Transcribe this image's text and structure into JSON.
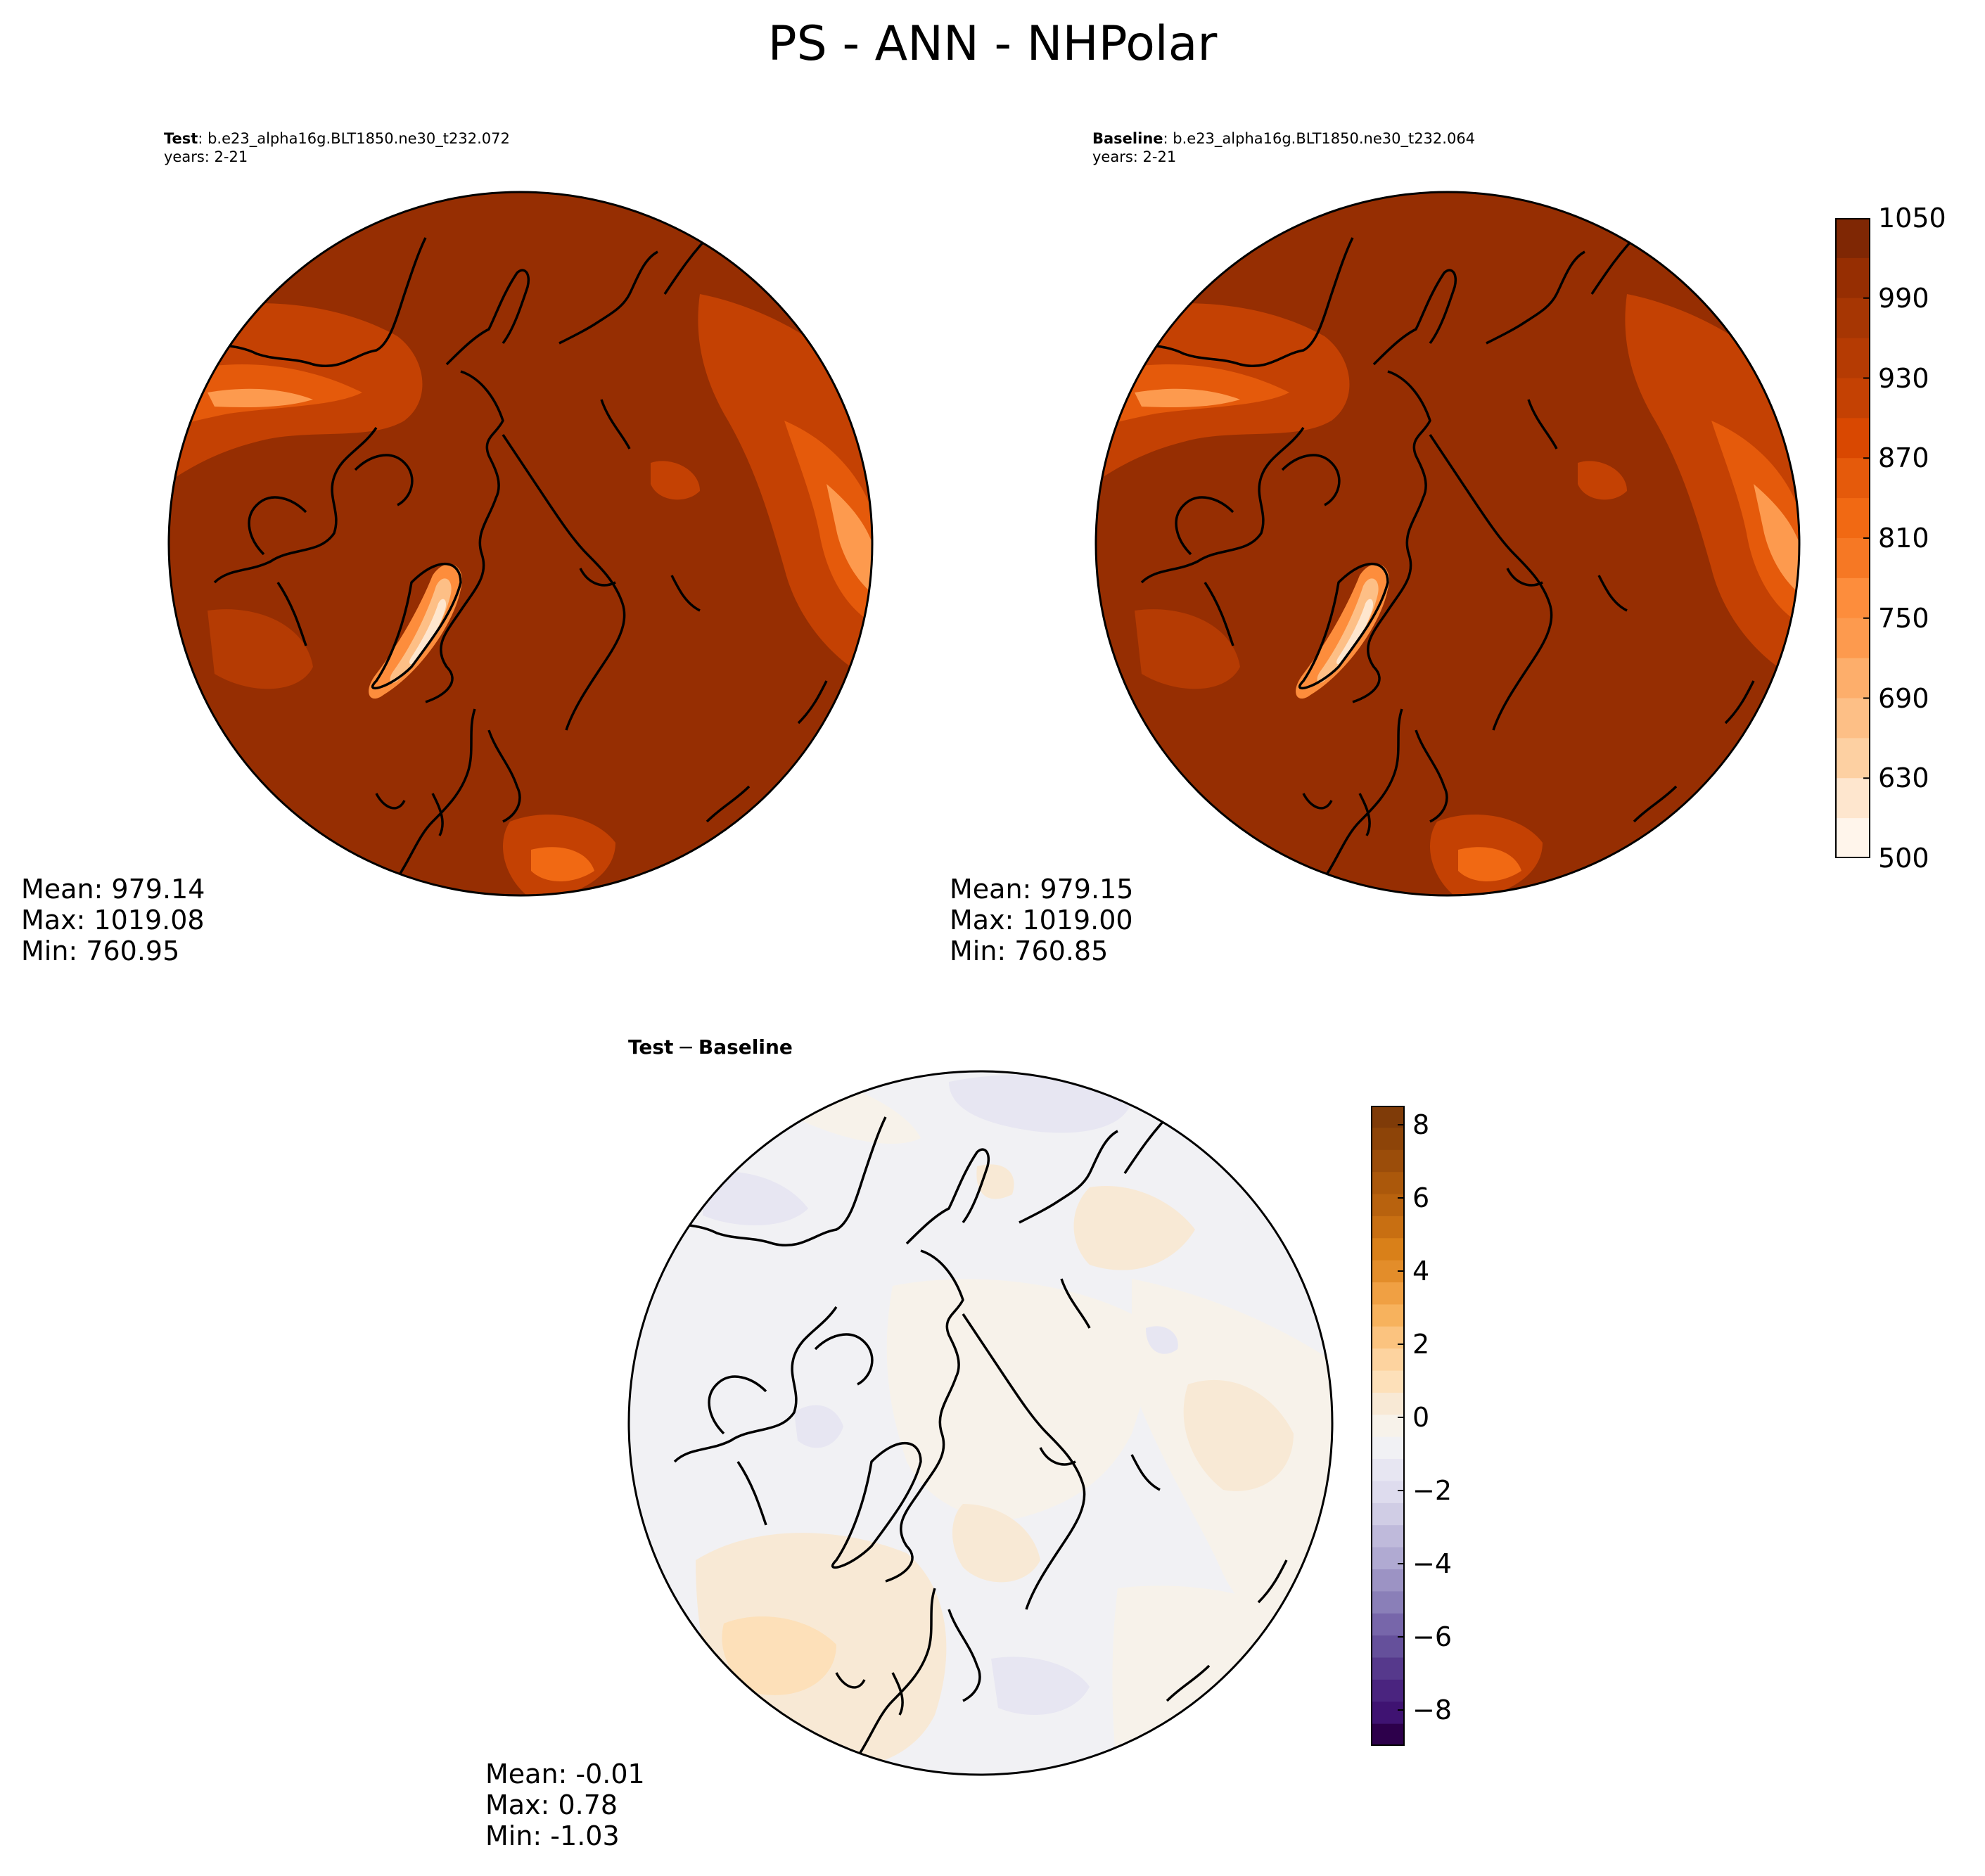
{
  "figure_title": "PS - ANN - NHPolar",
  "panels": {
    "test": {
      "label": "Test",
      "case": ": b.e23_alpha16g.BLT1850.ne30_t232.072",
      "years": "years: 2-21",
      "stats": {
        "mean": "Mean: 979.14",
        "max": "Max: 1019.08",
        "min": "Min: 760.95"
      }
    },
    "baseline": {
      "label": "Baseline",
      "case": ": b.e23_alpha16g.BLT1850.ne30_t232.064",
      "years": "years: 2-21",
      "stats": {
        "mean": "Mean: 979.15",
        "max": "Max: 1019.00",
        "min": "Min: 760.85"
      }
    },
    "diff": {
      "label_a": "Test",
      "label_sep": "−",
      "label_b": "Baseline",
      "stats": {
        "mean": "Mean: -0.01",
        "max": "Max:  0.78",
        "min": "Min: -1.03"
      }
    }
  },
  "colorbar_main": {
    "ticks": [
      "500",
      "630",
      "690",
      "750",
      "810",
      "870",
      "930",
      "990",
      "1050"
    ],
    "colormap": "Oranges",
    "colors": [
      "#fff5eb",
      "#fee6ce",
      "#fdd0a2",
      "#fdbf86",
      "#fdae6b",
      "#fd9a4e",
      "#fd8d3c",
      "#f67824",
      "#f16913",
      "#e55a0b",
      "#d94801",
      "#c44103",
      "#b53b03",
      "#a63603",
      "#962e02",
      "#7f2704"
    ]
  },
  "colorbar_diff": {
    "ticks": [
      "8",
      "6",
      "4",
      "2",
      "0",
      "−2",
      "−4",
      "−6",
      "−8"
    ],
    "colormap": "PuOr_r",
    "colors_top_to_bottom": [
      "#7f3b08",
      "#8d4408",
      "#9b4d0a",
      "#ab580b",
      "#b8620e",
      "#c86f12",
      "#d98019",
      "#e38d2a",
      "#f0a043",
      "#f7b25d",
      "#fbc37f",
      "#fdd39f",
      "#fde0b9",
      "#f8e9d5",
      "#f7f2ea",
      "#f1f1f4",
      "#e7e6f2",
      "#dedcee",
      "#d0cde5",
      "#bfbadb",
      "#b0aad2",
      "#9c93c4",
      "#8a7fb8",
      "#7766aa",
      "#65509b",
      "#56398c",
      "#4a247f",
      "#3f1372",
      "#2d004b"
    ]
  }
}
